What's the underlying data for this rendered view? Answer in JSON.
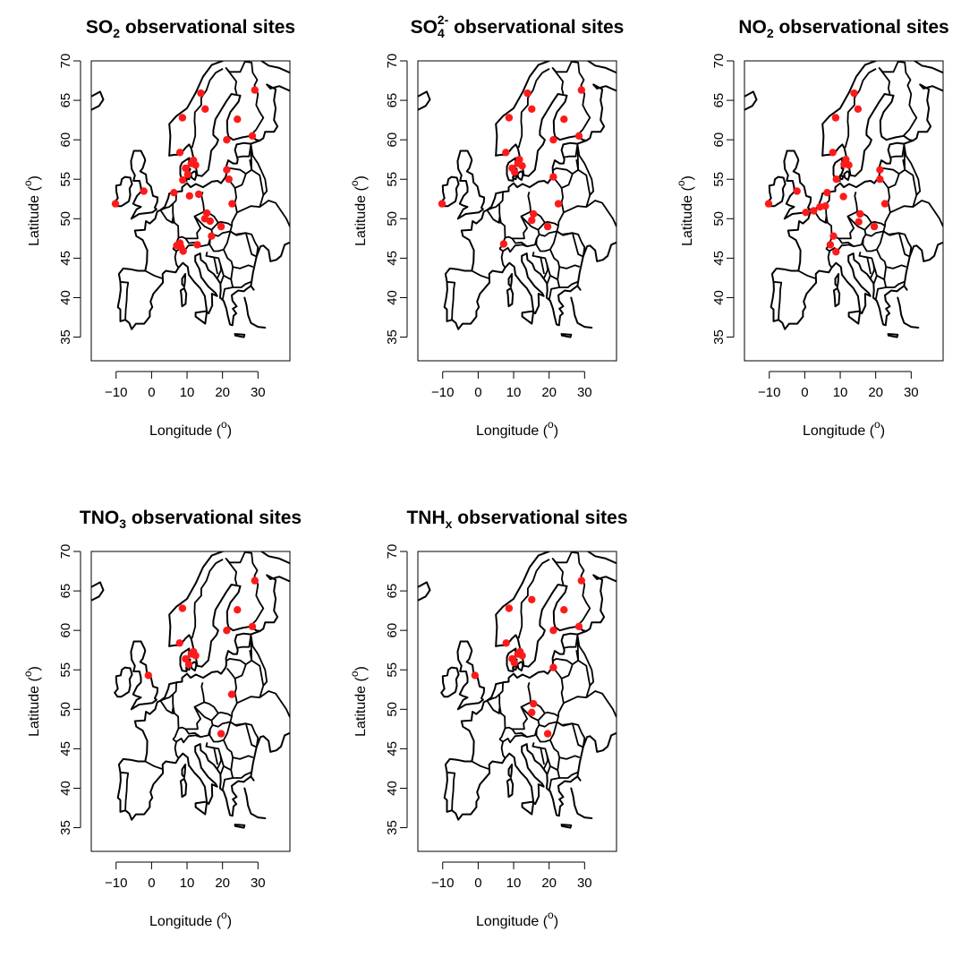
{
  "figure": {
    "panels": [
      {
        "title_main": "SO",
        "title_sub": "2",
        "title_sup": "",
        "title_rest": " observational sites"
      },
      {
        "title_main": "SO",
        "title_sub": "4",
        "title_sup": "2-",
        "title_rest": " observational sites"
      },
      {
        "title_main": "NO",
        "title_sub": "2",
        "title_sup": "",
        "title_rest": " observational sites"
      },
      {
        "title_main": "TNO",
        "title_sub": "3",
        "title_sup": "",
        "title_rest": " observational sites"
      },
      {
        "title_main": "TNH",
        "title_sub": "x",
        "title_sup": "",
        "title_rest": " observational sites"
      }
    ],
    "xlabel": "Longitude (",
    "ylabel": "Latitude (",
    "unit_sup": "o",
    "label_close": ")",
    "colors": {
      "sites": "#ff1a1a",
      "lines": "#000000"
    }
  },
  "chart_data": [
    {
      "type": "scatter",
      "title": "SO2 observational sites",
      "xlabel": "Longitude (o)",
      "ylabel": "Latitude (o)",
      "xlim": [
        -17,
        39
      ],
      "ylim": [
        32,
        70
      ],
      "xticks": [
        -10,
        0,
        10,
        20,
        30
      ],
      "yticks": [
        35,
        40,
        45,
        50,
        55,
        60,
        65,
        70
      ],
      "points": [
        [
          -10.2,
          51.9
        ],
        [
          -2.2,
          53.5
        ],
        [
          6.3,
          53.3
        ],
        [
          8.0,
          58.4
        ],
        [
          8.7,
          62.8
        ],
        [
          13.9,
          65.9
        ],
        [
          15.1,
          63.9
        ],
        [
          24.2,
          62.6
        ],
        [
          29.1,
          66.3
        ],
        [
          28.4,
          60.5
        ],
        [
          21.2,
          60.0
        ],
        [
          9.6,
          56.4
        ],
        [
          11.2,
          57.0
        ],
        [
          11.8,
          57.4
        ],
        [
          12.4,
          56.8
        ],
        [
          10.2,
          55.6
        ],
        [
          8.8,
          54.9
        ],
        [
          13.3,
          53.1
        ],
        [
          10.7,
          52.9
        ],
        [
          21.2,
          56.2
        ],
        [
          21.8,
          55.0
        ],
        [
          22.7,
          51.9
        ],
        [
          15.6,
          50.7
        ],
        [
          15.0,
          50.0
        ],
        [
          16.5,
          49.7
        ],
        [
          19.6,
          49.0
        ],
        [
          16.9,
          47.8
        ],
        [
          12.9,
          46.7
        ],
        [
          7.1,
          46.6
        ],
        [
          8.0,
          46.9
        ],
        [
          8.3,
          46.4
        ],
        [
          8.9,
          45.9
        ]
      ]
    },
    {
      "type": "scatter",
      "title": "SO42- observational sites",
      "xlabel": "Longitude (o)",
      "ylabel": "Latitude (o)",
      "xlim": [
        -17,
        39
      ],
      "ylim": [
        32,
        70
      ],
      "xticks": [
        -10,
        0,
        10,
        20,
        30
      ],
      "yticks": [
        35,
        40,
        45,
        50,
        55,
        60,
        65,
        70
      ],
      "points": [
        [
          -10.2,
          51.9
        ],
        [
          7.8,
          58.4
        ],
        [
          8.7,
          62.8
        ],
        [
          13.9,
          65.9
        ],
        [
          15.1,
          63.9
        ],
        [
          24.2,
          62.6
        ],
        [
          29.1,
          66.3
        ],
        [
          28.4,
          60.5
        ],
        [
          21.2,
          60.0
        ],
        [
          9.6,
          56.4
        ],
        [
          11.2,
          57.0
        ],
        [
          11.6,
          57.5
        ],
        [
          12.4,
          56.7
        ],
        [
          10.3,
          55.9
        ],
        [
          21.2,
          55.3
        ],
        [
          22.6,
          51.9
        ],
        [
          15.6,
          50.6
        ],
        [
          15.1,
          49.8
        ],
        [
          19.6,
          49.0
        ],
        [
          7.2,
          46.8
        ]
      ]
    },
    {
      "type": "scatter",
      "title": "NO2 observational sites",
      "xlabel": "Longitude (o)",
      "ylabel": "Latitude (o)",
      "xlim": [
        -17,
        39
      ],
      "ylim": [
        32,
        70
      ],
      "xticks": [
        -10,
        0,
        10,
        20,
        30
      ],
      "yticks": [
        35,
        40,
        45,
        50,
        55,
        60,
        65,
        70
      ],
      "points": [
        [
          -10.2,
          51.9
        ],
        [
          -2.2,
          53.5
        ],
        [
          0.3,
          50.8
        ],
        [
          2.5,
          51.0
        ],
        [
          4.3,
          51.5
        ],
        [
          5.8,
          51.6
        ],
        [
          6.3,
          53.3
        ],
        [
          7.9,
          58.4
        ],
        [
          8.7,
          62.8
        ],
        [
          13.9,
          65.9
        ],
        [
          15.0,
          63.9
        ],
        [
          8.9,
          55.0
        ],
        [
          11.1,
          56.9
        ],
        [
          11.6,
          57.5
        ],
        [
          12.4,
          56.8
        ],
        [
          10.9,
          52.8
        ],
        [
          21.2,
          56.2
        ],
        [
          21.2,
          55.0
        ],
        [
          22.6,
          51.9
        ],
        [
          15.6,
          50.6
        ],
        [
          15.2,
          49.6
        ],
        [
          19.6,
          49.0
        ],
        [
          8.1,
          47.8
        ],
        [
          7.2,
          46.7
        ],
        [
          8.8,
          45.8
        ]
      ]
    },
    {
      "type": "scatter",
      "title": "TNO3 observational sites",
      "xlabel": "Longitude (o)",
      "ylabel": "Latitude (o)",
      "xlim": [
        -17,
        39
      ],
      "ylim": [
        32,
        70
      ],
      "xticks": [
        -10,
        0,
        10,
        20,
        30
      ],
      "yticks": [
        35,
        40,
        45,
        50,
        55,
        60,
        65,
        70
      ],
      "points": [
        [
          -0.9,
          54.3
        ],
        [
          8.7,
          62.8
        ],
        [
          7.9,
          58.4
        ],
        [
          24.2,
          62.6
        ],
        [
          29.1,
          66.3
        ],
        [
          28.4,
          60.5
        ],
        [
          21.2,
          60.0
        ],
        [
          9.6,
          56.4
        ],
        [
          11.2,
          57.0
        ],
        [
          11.8,
          57.3
        ],
        [
          12.4,
          56.8
        ],
        [
          10.5,
          55.7
        ],
        [
          22.6,
          51.9
        ],
        [
          19.6,
          46.9
        ]
      ]
    },
    {
      "type": "scatter",
      "title": "TNHx observational sites",
      "xlabel": "Longitude (o)",
      "ylabel": "Latitude (o)",
      "xlim": [
        -17,
        39
      ],
      "ylim": [
        32,
        70
      ],
      "xticks": [
        -10,
        0,
        10,
        20,
        30
      ],
      "yticks": [
        35,
        40,
        45,
        50,
        55,
        60,
        65,
        70
      ],
      "points": [
        [
          -0.9,
          54.3
        ],
        [
          8.7,
          62.8
        ],
        [
          7.9,
          58.4
        ],
        [
          15.1,
          63.9
        ],
        [
          24.2,
          62.6
        ],
        [
          29.1,
          66.3
        ],
        [
          28.4,
          60.5
        ],
        [
          21.2,
          60.0
        ],
        [
          9.6,
          56.4
        ],
        [
          11.2,
          57.0
        ],
        [
          11.8,
          57.3
        ],
        [
          12.4,
          56.8
        ],
        [
          10.2,
          55.9
        ],
        [
          21.2,
          55.3
        ],
        [
          15.6,
          50.7
        ],
        [
          15.1,
          49.6
        ],
        [
          19.6,
          46.9
        ]
      ]
    }
  ]
}
